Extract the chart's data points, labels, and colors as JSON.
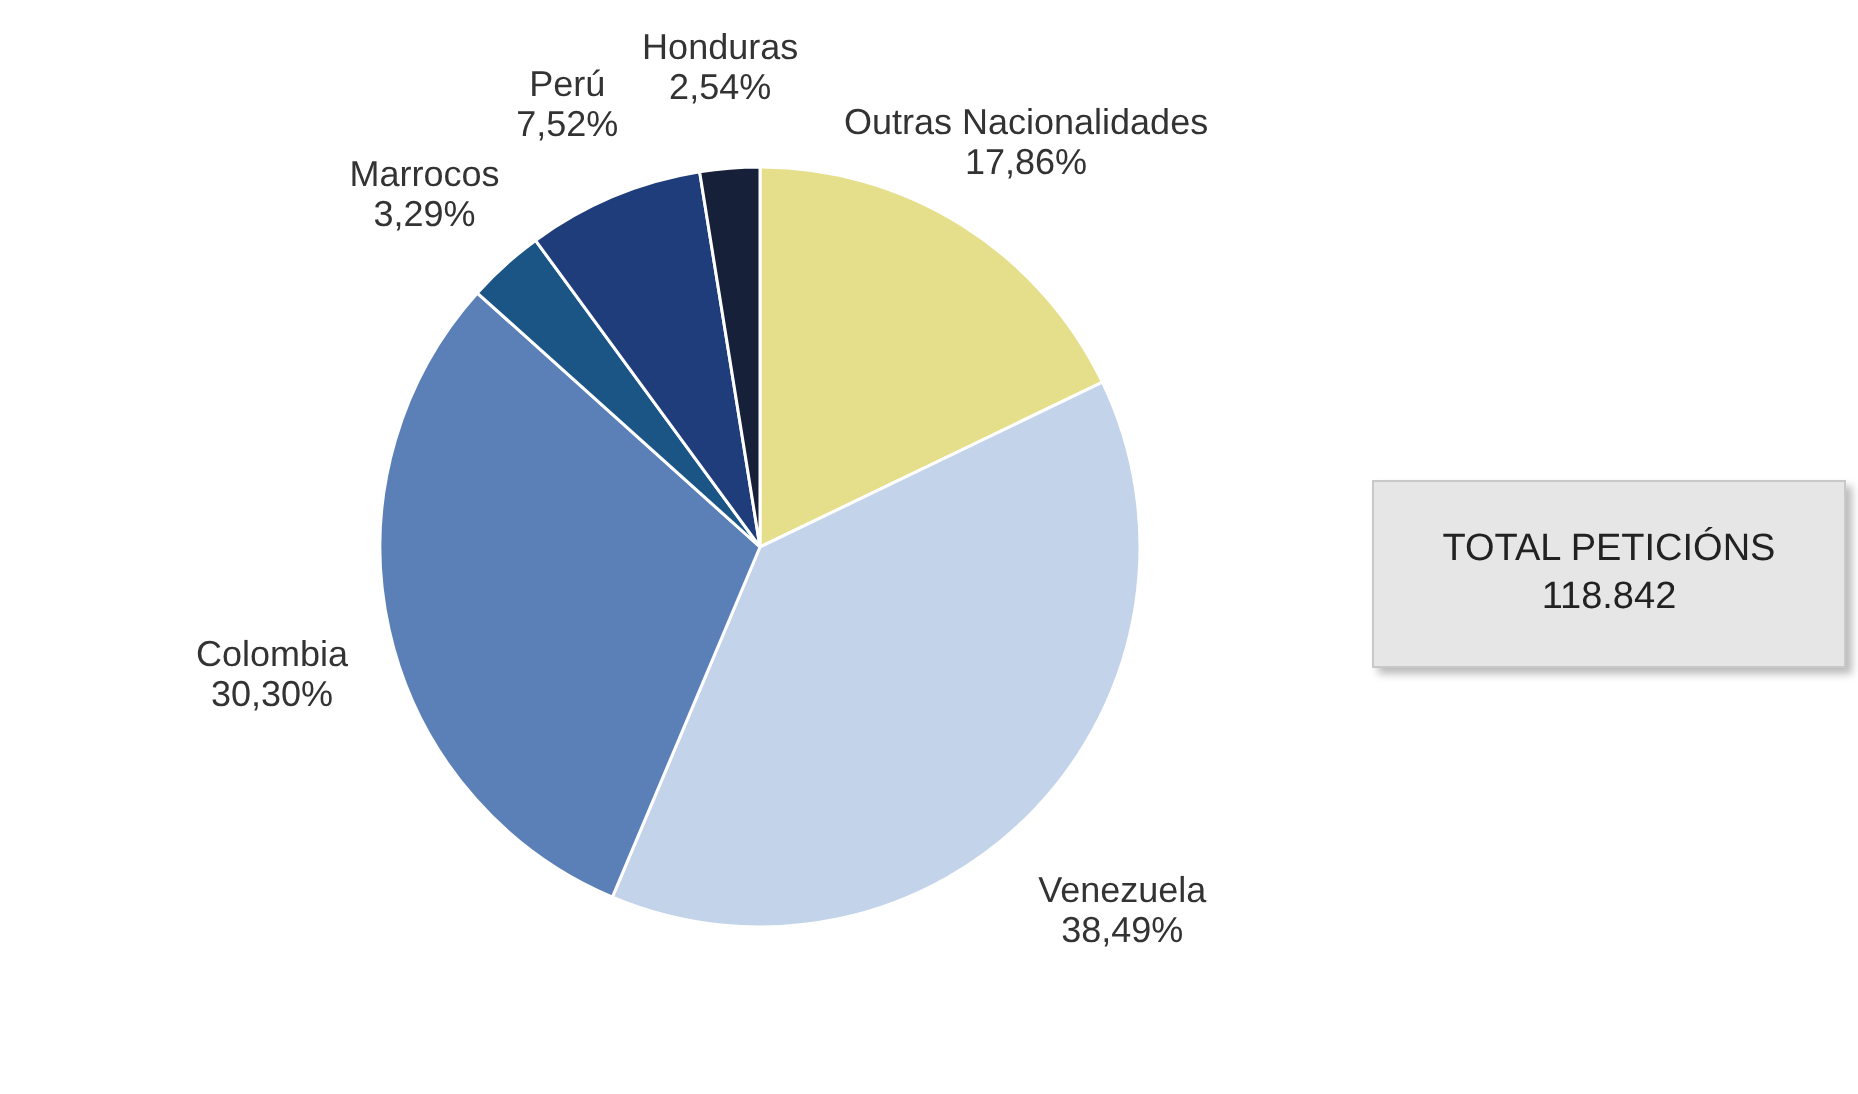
{
  "chart_data": {
    "type": "pie",
    "categories": [
      "Outras Nacionalidades",
      "Venezuela",
      "Colombia",
      "Marrocos",
      "Perú",
      "Honduras"
    ],
    "values": [
      17.86,
      38.49,
      30.3,
      3.29,
      7.52,
      2.54
    ],
    "value_labels": [
      "17,86%",
      "38,49%",
      "30,30%",
      "3,29%",
      "7,52%",
      "2,54%"
    ],
    "colors": [
      "#e5df8c",
      "#c3d3ea",
      "#5b80b8",
      "#1a5585",
      "#1f3d7a",
      "#162038"
    ],
    "annotations": [
      "TOTAL PETICIÓNS",
      "118.842"
    ]
  }
}
